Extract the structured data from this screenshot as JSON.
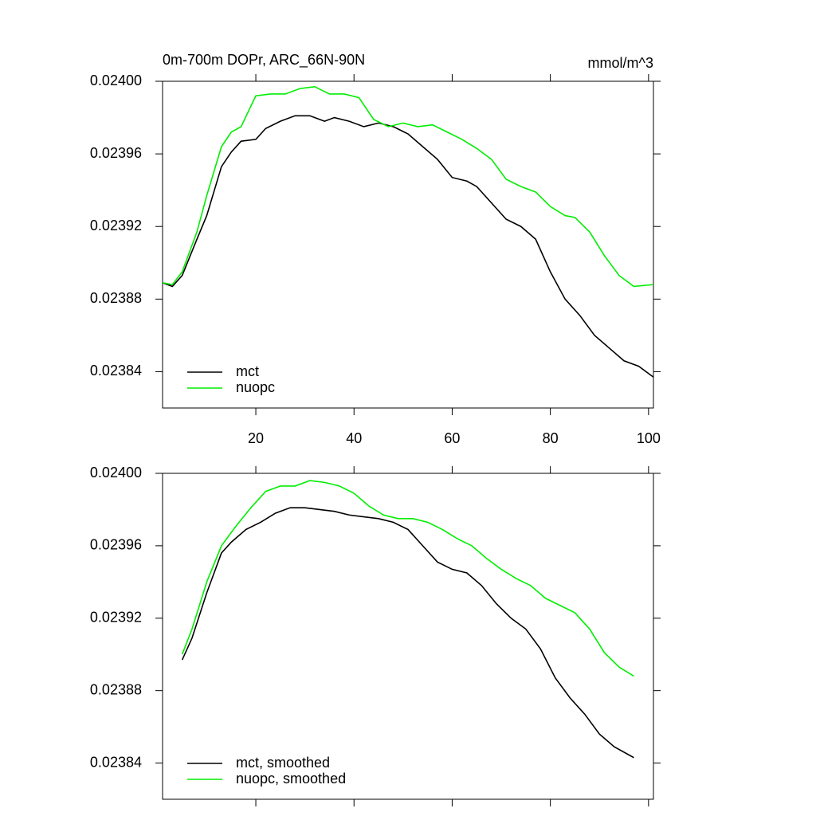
{
  "chart_data": [
    {
      "type": "line",
      "title": "0m-700m DOPr, ARC_66N-90N",
      "units_label": "mmol/m^3",
      "xlim": [
        1,
        101
      ],
      "xticks": [
        20,
        40,
        60,
        80,
        100
      ],
      "xtick_labels": true,
      "ylim": [
        0.02382,
        0.024
      ],
      "yticks": [
        {
          "value": 0.02384,
          "label": "0.02384"
        },
        {
          "value": 0.02388,
          "label": "0.02388"
        },
        {
          "value": 0.02392,
          "label": "0.02392"
        },
        {
          "value": 0.02396,
          "label": "0.02396"
        },
        {
          "value": 0.024,
          "label": "0.02400"
        }
      ],
      "legend": "lower left",
      "series": [
        {
          "name": "mct",
          "color": "#000000",
          "x": [
            1,
            3,
            5,
            8,
            10,
            13,
            15,
            17,
            20,
            22,
            25,
            28,
            31,
            34,
            36,
            39,
            42,
            45,
            48,
            51,
            54,
            57,
            60,
            63,
            65,
            68,
            71,
            74,
            77,
            80,
            83,
            86,
            89,
            92,
            95,
            98,
            101
          ],
          "values": [
            0.023889,
            0.023887,
            0.023893,
            0.023913,
            0.023926,
            0.023953,
            0.023961,
            0.023967,
            0.023968,
            0.023974,
            0.023978,
            0.023981,
            0.023981,
            0.023978,
            0.02398,
            0.023978,
            0.023975,
            0.023977,
            0.023975,
            0.023971,
            0.023964,
            0.023957,
            0.023947,
            0.023945,
            0.023942,
            0.023933,
            0.023924,
            0.02392,
            0.023913,
            0.023895,
            0.02388,
            0.023871,
            0.02386,
            0.023853,
            0.023846,
            0.023843,
            0.023837
          ]
        },
        {
          "name": "nuopc",
          "color": "#00ee00",
          "x": [
            1,
            3,
            5,
            8,
            10,
            13,
            15,
            17,
            20,
            23,
            26,
            29,
            32,
            35,
            38,
            41,
            44,
            47,
            50,
            53,
            56,
            59,
            62,
            65,
            68,
            71,
            74,
            77,
            80,
            83,
            85,
            88,
            91,
            94,
            97,
            101
          ],
          "values": [
            0.023889,
            0.023888,
            0.023895,
            0.023917,
            0.023937,
            0.023964,
            0.023972,
            0.023975,
            0.023992,
            0.023993,
            0.023993,
            0.023996,
            0.023997,
            0.023993,
            0.023993,
            0.023991,
            0.023979,
            0.023975,
            0.023977,
            0.023975,
            0.023976,
            0.023972,
            0.023968,
            0.023963,
            0.023957,
            0.023946,
            0.023942,
            0.023939,
            0.023931,
            0.023926,
            0.023925,
            0.023917,
            0.023904,
            0.023893,
            0.023887,
            0.023888
          ]
        }
      ]
    },
    {
      "type": "line",
      "xlim": [
        1,
        101
      ],
      "xticks": [
        20,
        40,
        60,
        80,
        100
      ],
      "xtick_labels": false,
      "ylim": [
        0.02382,
        0.024
      ],
      "yticks": [
        {
          "value": 0.02384,
          "label": "0.02384"
        },
        {
          "value": 0.02388,
          "label": "0.02388"
        },
        {
          "value": 0.02392,
          "label": "0.02392"
        },
        {
          "value": 0.02396,
          "label": "0.02396"
        },
        {
          "value": 0.024,
          "label": "0.02400"
        }
      ],
      "legend": "lower left",
      "series": [
        {
          "name": "mct, smoothed",
          "color": "#000000",
          "x": [
            5,
            7,
            10,
            13,
            15,
            18,
            21,
            24,
            27,
            30,
            33,
            36,
            39,
            42,
            45,
            48,
            51,
            54,
            57,
            60,
            63,
            66,
            69,
            72,
            75,
            78,
            81,
            84,
            87,
            90,
            93,
            97
          ],
          "values": [
            0.023897,
            0.023909,
            0.023934,
            0.023956,
            0.023962,
            0.023969,
            0.023973,
            0.023978,
            0.023981,
            0.023981,
            0.02398,
            0.023979,
            0.023977,
            0.023976,
            0.023975,
            0.023973,
            0.023969,
            0.02396,
            0.023951,
            0.023947,
            0.023945,
            0.023938,
            0.023928,
            0.02392,
            0.023914,
            0.023903,
            0.023887,
            0.023876,
            0.023867,
            0.023856,
            0.023849,
            0.023843
          ]
        },
        {
          "name": "nuopc, smoothed",
          "color": "#00ee00",
          "x": [
            5,
            7,
            10,
            13,
            16,
            19,
            22,
            25,
            28,
            31,
            34,
            37,
            40,
            43,
            46,
            49,
            52,
            55,
            58,
            61,
            64,
            67,
            70,
            73,
            76,
            79,
            82,
            85,
            88,
            91,
            94,
            97
          ],
          "values": [
            0.0239,
            0.023914,
            0.02394,
            0.02396,
            0.023971,
            0.023981,
            0.02399,
            0.023993,
            0.023993,
            0.023996,
            0.023995,
            0.023993,
            0.023989,
            0.023982,
            0.023977,
            0.023975,
            0.023975,
            0.023973,
            0.023969,
            0.023964,
            0.02396,
            0.023953,
            0.023947,
            0.023942,
            0.023938,
            0.023931,
            0.023927,
            0.023923,
            0.023914,
            0.023901,
            0.023893,
            0.023888
          ]
        }
      ]
    }
  ]
}
